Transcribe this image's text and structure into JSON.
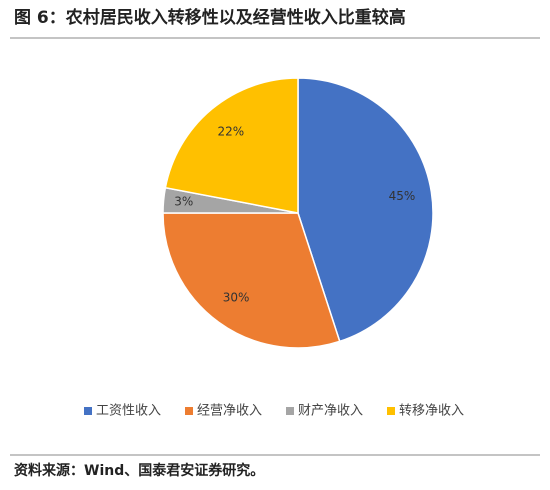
{
  "chart_data": {
    "type": "pie",
    "title": "图 6：农村居民收入转移性以及经营性收入比重较高",
    "source": "资料来源：Wind、国泰君安证券研究。",
    "categories": [
      "工资性收入",
      "经营净收入",
      "财产净收入",
      "转移净收入"
    ],
    "values": [
      45,
      30,
      3,
      22
    ],
    "value_labels": [
      "45%",
      "30%",
      "3%",
      "22%"
    ],
    "colors": [
      "#4472c4",
      "#ed7d31",
      "#a5a5a5",
      "#ffc000"
    ],
    "legend": "bottom"
  }
}
